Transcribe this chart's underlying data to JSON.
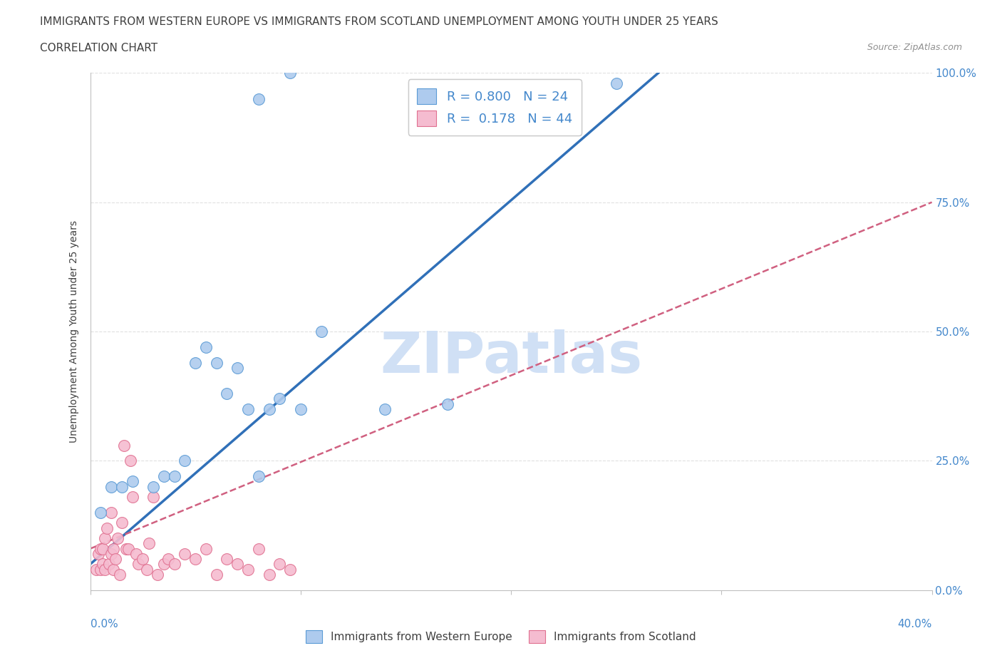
{
  "title_line1": "IMMIGRANTS FROM WESTERN EUROPE VS IMMIGRANTS FROM SCOTLAND UNEMPLOYMENT AMONG YOUTH UNDER 25 YEARS",
  "title_line2": "CORRELATION CHART",
  "source_text": "Source: ZipAtlas.com",
  "ylabel": "Unemployment Among Youth under 25 years",
  "r_blue": 0.8,
  "n_blue": 24,
  "r_pink": 0.178,
  "n_pink": 44,
  "blue_color": "#aecbee",
  "blue_edge_color": "#5b9bd5",
  "blue_line_color": "#3070b8",
  "pink_color": "#f5bcd0",
  "pink_edge_color": "#e07090",
  "pink_line_color": "#d06080",
  "watermark_text": "ZIPatlas",
  "watermark_color": "#d0e0f5",
  "legend_label_blue": "Immigrants from Western Europe",
  "legend_label_pink": "Immigrants from Scotland",
  "ytick_values": [
    0,
    25,
    50,
    75,
    100
  ],
  "ytick_labels": [
    "0.0%",
    "25.0%",
    "50.0%",
    "75.0%",
    "100.0%"
  ],
  "xtick_left_label": "0.0%",
  "xtick_right_label": "40.0%",
  "xlim": [
    0,
    40
  ],
  "ylim": [
    0,
    100
  ],
  "blue_x": [
    0.5,
    1.0,
    1.5,
    2.0,
    3.0,
    3.5,
    4.0,
    4.5,
    5.0,
    5.5,
    6.0,
    6.5,
    7.0,
    7.5,
    8.0,
    8.5,
    9.0,
    10.0,
    11.0,
    14.0,
    17.0,
    25.0,
    8.0,
    9.5
  ],
  "blue_y": [
    15,
    20,
    20,
    21,
    20,
    22,
    22,
    25,
    44,
    47,
    44,
    38,
    43,
    35,
    22,
    35,
    37,
    35,
    50,
    35,
    36,
    98,
    95,
    100
  ],
  "pink_x": [
    0.3,
    0.4,
    0.5,
    0.5,
    0.6,
    0.6,
    0.7,
    0.7,
    0.8,
    0.9,
    1.0,
    1.0,
    1.1,
    1.1,
    1.2,
    1.3,
    1.4,
    1.5,
    1.6,
    1.7,
    1.8,
    1.9,
    2.0,
    2.2,
    2.3,
    2.5,
    2.7,
    2.8,
    3.0,
    3.2,
    3.5,
    3.7,
    4.0,
    4.5,
    5.0,
    5.5,
    6.0,
    6.5,
    7.0,
    7.5,
    8.0,
    8.5,
    9.0,
    9.5
  ],
  "pink_y": [
    4,
    7,
    8,
    4,
    5,
    8,
    4,
    10,
    12,
    5,
    15,
    7,
    8,
    4,
    6,
    10,
    3,
    13,
    28,
    8,
    8,
    25,
    18,
    7,
    5,
    6,
    4,
    9,
    18,
    3,
    5,
    6,
    5,
    7,
    6,
    8,
    3,
    6,
    5,
    4,
    8,
    3,
    5,
    4
  ],
  "bg_color": "#ffffff",
  "grid_color": "#e0e0e0",
  "axis_color": "#c0c0c0",
  "title_color": "#404040",
  "right_label_color": "#4488cc",
  "text_color": "#404040",
  "blue_line_x0": 0.0,
  "blue_line_y0": 5.0,
  "blue_line_x1": 27.0,
  "blue_line_y1": 100.0,
  "pink_line_x0": 0.0,
  "pink_line_y0": 8.0,
  "pink_line_x1": 40.0,
  "pink_line_y1": 75.0
}
